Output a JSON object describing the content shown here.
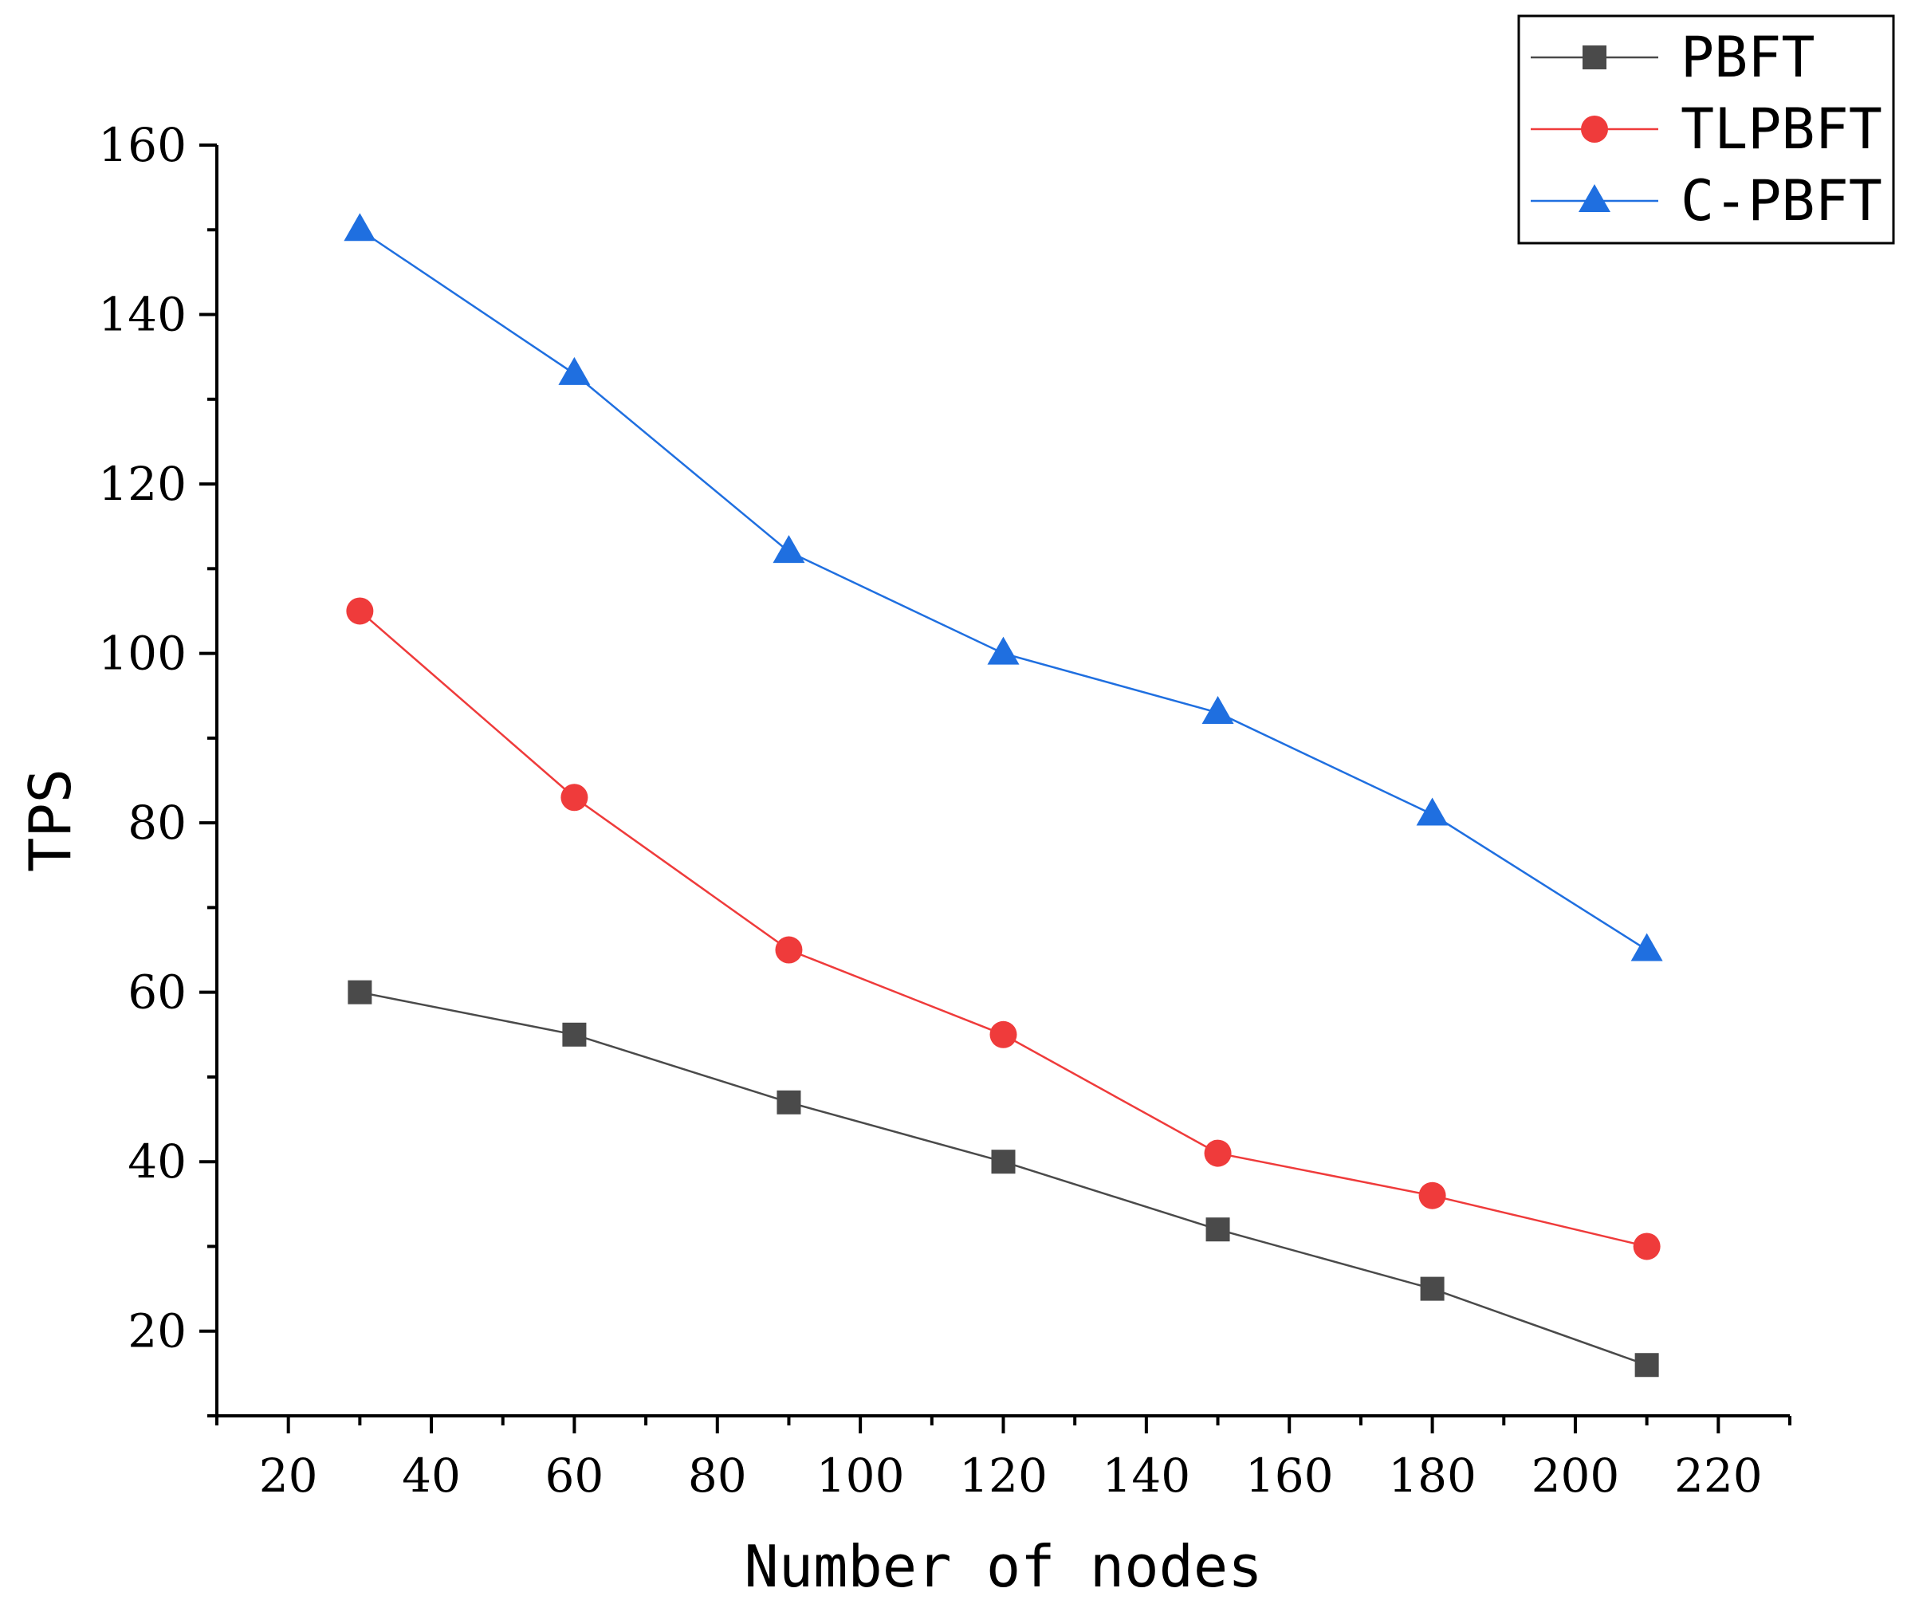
{
  "chart_data": {
    "type": "line",
    "title": "",
    "xlabel": "Number of nodes",
    "ylabel": "TPS",
    "xlim": [
      10,
      230
    ],
    "ylim": [
      10,
      160
    ],
    "xticks": [
      20,
      40,
      60,
      80,
      100,
      120,
      140,
      160,
      180,
      200,
      220
    ],
    "yticks": [
      20,
      40,
      60,
      80,
      100,
      120,
      140,
      160
    ],
    "grid": false,
    "legend_position": "top-right",
    "x": [
      30,
      60,
      90,
      120,
      150,
      180,
      210
    ],
    "series": [
      {
        "name": "PBFT",
        "color": "#4a4a4a",
        "marker": "square",
        "values": [
          60,
          55,
          47,
          40,
          32,
          25,
          16
        ]
      },
      {
        "name": "TLPBFT",
        "color": "#ef3b3b",
        "marker": "circle",
        "values": [
          105,
          83,
          65,
          55,
          41,
          36,
          30
        ]
      },
      {
        "name": "C-PBFT",
        "color": "#1f6fe0",
        "marker": "triangle",
        "values": [
          150,
          133,
          112,
          100,
          93,
          81,
          65
        ]
      }
    ]
  }
}
